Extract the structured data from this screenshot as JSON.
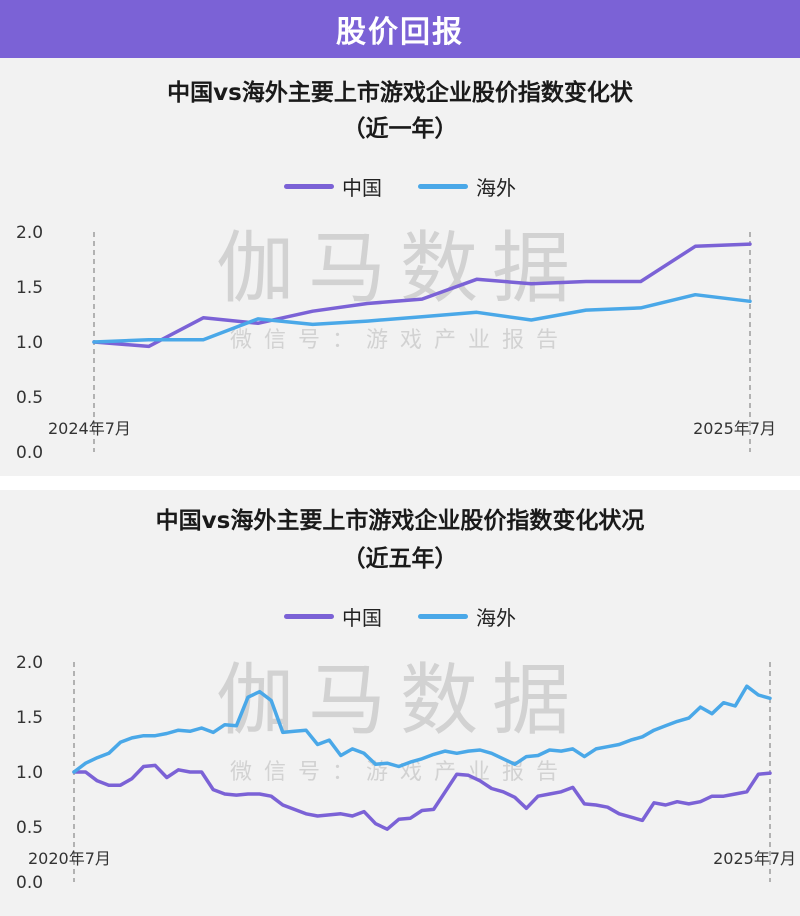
{
  "header": {
    "title": "股价回报"
  },
  "colors": {
    "header_bg": "#7b62d6",
    "china": "#7b62d6",
    "overseas": "#4aa8e8"
  },
  "watermark": {
    "main": "伽马数据",
    "sub": "微信号：游戏产业报告"
  },
  "chart_data": [
    {
      "type": "line",
      "title_line1": "中国vs海外主要上市游戏企业股价指数变化状",
      "title_line2": "（近一年）",
      "legend": [
        "中国",
        "海外"
      ],
      "x_start_label": "2024年7月",
      "x_end_label": "2025年7月",
      "ylim": [
        0,
        2.0
      ],
      "yticks": [
        "0.0",
        "0.5",
        "1.0",
        "1.5",
        "2.0"
      ],
      "x_range": [
        0,
        12
      ],
      "series": [
        {
          "name": "中国",
          "x": [
            0,
            1,
            2,
            3,
            4,
            5,
            6,
            7,
            8,
            9,
            10,
            11,
            12
          ],
          "values": [
            1.0,
            0.96,
            1.22,
            1.17,
            1.28,
            1.35,
            1.39,
            1.57,
            1.53,
            1.55,
            1.55,
            1.87,
            1.89
          ]
        },
        {
          "name": "海外",
          "x": [
            0,
            1,
            2,
            3,
            4,
            5,
            6,
            7,
            8,
            9,
            10,
            11,
            12
          ],
          "values": [
            1.0,
            1.02,
            1.02,
            1.21,
            1.16,
            1.19,
            1.23,
            1.27,
            1.2,
            1.29,
            1.31,
            1.43,
            1.37
          ]
        }
      ]
    },
    {
      "type": "line",
      "title_line1": "中国vs海外主要上市游戏企业股价指数变化状况",
      "title_line2": "（近五年）",
      "legend": [
        "中国",
        "海外"
      ],
      "x_start_label": "2020年7月",
      "x_end_label": "2025年7月",
      "ylim": [
        0,
        2.0
      ],
      "yticks": [
        "0.0",
        "0.5",
        "1.0",
        "1.5",
        "2.0"
      ],
      "x_range": [
        0,
        60
      ],
      "series": [
        {
          "name": "中国",
          "x": [
            0,
            1,
            2,
            3,
            4,
            5,
            6,
            7,
            8,
            9,
            10,
            11,
            12,
            13,
            14,
            15,
            16,
            17,
            18,
            19,
            20,
            21,
            22,
            23,
            24,
            25,
            26,
            27,
            28,
            29,
            30,
            31,
            32,
            33,
            34,
            35,
            36,
            37,
            38,
            39,
            40,
            41,
            42,
            43,
            44,
            45,
            46,
            47,
            48,
            49,
            50,
            51,
            52,
            53,
            54,
            55,
            56,
            57,
            58,
            59,
            60
          ],
          "values": [
            1.0,
            1.0,
            0.92,
            0.88,
            0.88,
            0.94,
            1.05,
            1.06,
            0.95,
            1.02,
            1.0,
            1.0,
            0.84,
            0.8,
            0.79,
            0.8,
            0.8,
            0.78,
            0.7,
            0.66,
            0.62,
            0.6,
            0.61,
            0.62,
            0.6,
            0.64,
            0.53,
            0.48,
            0.57,
            0.58,
            0.65,
            0.66,
            0.82,
            0.98,
            0.97,
            0.92,
            0.85,
            0.82,
            0.77,
            0.67,
            0.78,
            0.8,
            0.82,
            0.86,
            0.71,
            0.7,
            0.68,
            0.62,
            0.59,
            0.56,
            0.72,
            0.7,
            0.73,
            0.71,
            0.73,
            0.78,
            0.78,
            0.8,
            0.82,
            0.98,
            0.99
          ]
        },
        {
          "name": "海外",
          "x": [
            0,
            1,
            2,
            3,
            4,
            5,
            6,
            7,
            8,
            9,
            10,
            11,
            12,
            13,
            14,
            15,
            16,
            17,
            18,
            19,
            20,
            21,
            22,
            23,
            24,
            25,
            26,
            27,
            28,
            29,
            30,
            31,
            32,
            33,
            34,
            35,
            36,
            37,
            38,
            39,
            40,
            41,
            42,
            43,
            44,
            45,
            46,
            47,
            48,
            49,
            50,
            51,
            52,
            53,
            54,
            55,
            56,
            57,
            58,
            59,
            60
          ],
          "values": [
            1.0,
            1.08,
            1.13,
            1.17,
            1.27,
            1.31,
            1.33,
            1.33,
            1.35,
            1.38,
            1.37,
            1.4,
            1.36,
            1.43,
            1.42,
            1.68,
            1.73,
            1.65,
            1.36,
            1.37,
            1.38,
            1.25,
            1.29,
            1.15,
            1.21,
            1.17,
            1.07,
            1.08,
            1.05,
            1.09,
            1.12,
            1.16,
            1.19,
            1.17,
            1.19,
            1.2,
            1.17,
            1.12,
            1.07,
            1.14,
            1.15,
            1.2,
            1.19,
            1.21,
            1.14,
            1.21,
            1.23,
            1.25,
            1.29,
            1.32,
            1.38,
            1.42,
            1.46,
            1.49,
            1.59,
            1.53,
            1.63,
            1.6,
            1.78,
            1.7,
            1.67
          ]
        }
      ]
    }
  ]
}
